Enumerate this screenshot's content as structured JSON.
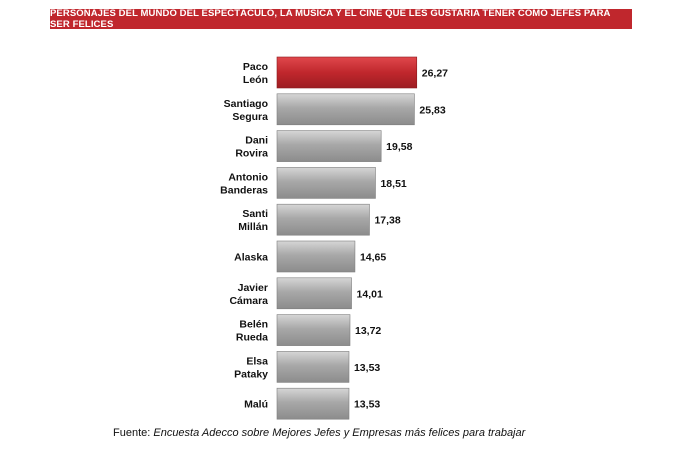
{
  "chart_data": {
    "type": "bar",
    "orientation": "horizontal",
    "title": "PERSONAJES DEL MUNDO DEL ESPECTÁCULO, LA MÚSICA Y EL CINE QUE LES GUSTARÍA TENER COMO JEFES PARA SER FELICES",
    "categories": [
      [
        "Paco",
        "León"
      ],
      [
        "Santiago",
        "Segura"
      ],
      [
        "Dani",
        "Rovira"
      ],
      [
        "Antonio",
        "Banderas"
      ],
      [
        "Santi",
        "Millán"
      ],
      [
        "Alaska"
      ],
      [
        "Javier",
        "Cámara"
      ],
      [
        "Belén",
        "Rueda"
      ],
      [
        "Elsa",
        "Pataky"
      ],
      [
        "Malú"
      ]
    ],
    "values": [
      26.27,
      25.83,
      19.58,
      18.51,
      17.38,
      14.65,
      14.01,
      13.72,
      13.53,
      13.53
    ],
    "value_labels": [
      "26,27",
      "25,83",
      "19,58",
      "18,51",
      "17,38",
      "14,65",
      "14,01",
      "13,72",
      "13,53",
      "13,53"
    ],
    "highlight_index": 0,
    "colors": {
      "highlight": "#c0272d",
      "bar": "#a3a3a3",
      "title_band": "#c0272d"
    },
    "xlim": [
      0,
      27
    ]
  },
  "source": {
    "prefix": "Fuente: ",
    "title": "Encuesta Adecco sobre Mejores Jefes y Empresas más felices para trabajar"
  }
}
